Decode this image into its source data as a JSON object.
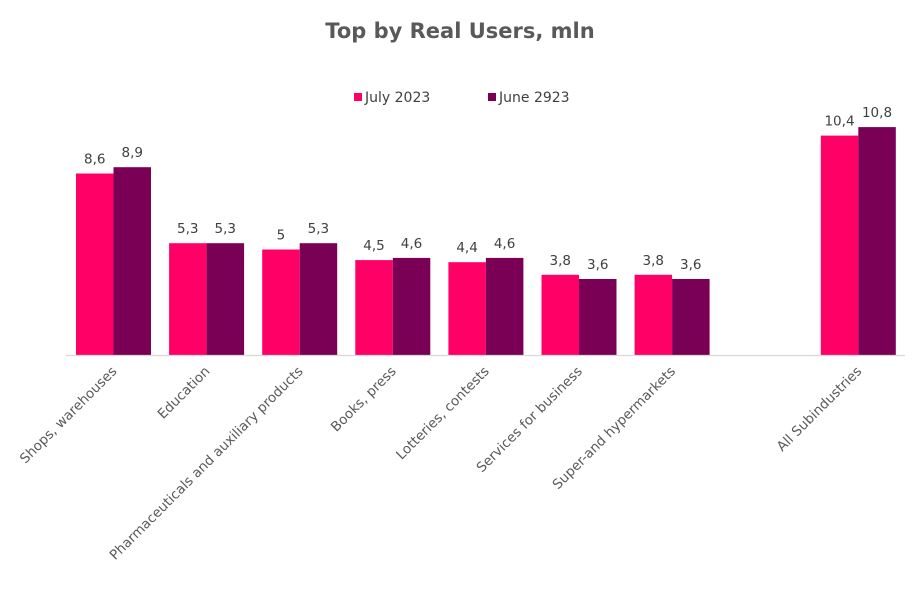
{
  "chart_data": {
    "type": "bar",
    "title": "Top by Real Users, mln",
    "xlabel": "",
    "ylabel": "",
    "ylim": [
      0,
      11
    ],
    "grid": false,
    "legend_position": "top-center",
    "categories": [
      "Shops, warehouses",
      "Education",
      "Pharmaceuticals and auxiliary products",
      "Books, press",
      "Lotteries, contests",
      "Services for business",
      "Super-and hypermarkets",
      "",
      "All Subindustries"
    ],
    "series": [
      {
        "name": "July 2023",
        "color": "#ff0066",
        "values": [
          8.6,
          5.3,
          5,
          4.5,
          4.4,
          3.8,
          3.8,
          null,
          10.4
        ],
        "labels": [
          "8,6",
          "5,3",
          "5",
          "4,5",
          "4,4",
          "3,8",
          "3,8",
          "",
          "10,4"
        ]
      },
      {
        "name": "June 2923",
        "color": "#7a0055",
        "values": [
          8.9,
          5.3,
          5.3,
          4.6,
          4.6,
          3.6,
          3.6,
          null,
          10.8
        ],
        "labels": [
          "8,9",
          "5,3",
          "5,3",
          "4,6",
          "4,6",
          "3,6",
          "3,6",
          "",
          "10,8"
        ]
      }
    ],
    "axis_color": "#d9d9d9"
  }
}
